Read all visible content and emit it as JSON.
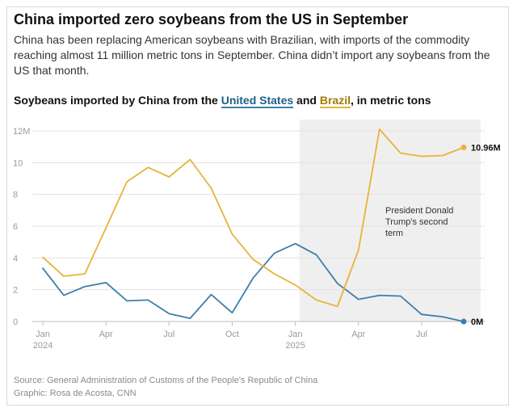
{
  "header": {
    "title": "China imported zero soybeans from the US in September",
    "subtitle": "China has been replacing American soybeans with Brazilian, with imports of the commodity reaching almost 11 million metric tons in September. China didn’t import any soybeans from the US that month."
  },
  "chart_heading": {
    "prefix": "Soybeans imported by China from the ",
    "us": "United States",
    "and": " and ",
    "brazil": "Brazil",
    "suffix": ", in metric tons"
  },
  "colors": {
    "us": "#3d7fab",
    "brazil": "#e7b33a",
    "shade": "#efefef",
    "grid": "#e3e3e3",
    "axis_text": "#9a9a9a"
  },
  "chart_data": {
    "type": "line",
    "title": "Soybeans imported by China from the United States and Brazil, in metric tons",
    "xlabel": "",
    "ylabel": "",
    "unit": "million metric tons",
    "x": [
      "Jan 2024",
      "Feb 2024",
      "Mar 2024",
      "Apr 2024",
      "May 2024",
      "Jun 2024",
      "Jul 2024",
      "Aug 2024",
      "Sep 2024",
      "Oct 2024",
      "Nov 2024",
      "Dec 2024",
      "Jan 2025",
      "Feb 2025",
      "Mar 2025",
      "Apr 2025",
      "May 2025",
      "Jun 2025",
      "Jul 2025",
      "Aug 2025",
      "Sep 2025"
    ],
    "series": [
      {
        "name": "United States",
        "color": "#3d7fab",
        "values": [
          3.35,
          1.65,
          2.2,
          2.45,
          1.3,
          1.35,
          0.5,
          0.2,
          1.7,
          0.55,
          2.75,
          4.3,
          4.9,
          4.2,
          2.4,
          1.4,
          1.65,
          1.6,
          0.45,
          0.3,
          0.0
        ]
      },
      {
        "name": "Brazil",
        "color": "#e7b33a",
        "values": [
          4.05,
          2.85,
          3.0,
          5.9,
          8.8,
          9.7,
          9.1,
          10.2,
          8.4,
          5.5,
          3.9,
          3.0,
          2.3,
          1.35,
          0.95,
          4.5,
          12.1,
          10.6,
          10.4,
          10.45,
          10.96
        ]
      }
    ],
    "y_ticks": [
      {
        "value": 0,
        "label": "0"
      },
      {
        "value": 2,
        "label": "2"
      },
      {
        "value": 4,
        "label": "4"
      },
      {
        "value": 6,
        "label": "6"
      },
      {
        "value": 8,
        "label": "8"
      },
      {
        "value": 10,
        "label": "10"
      },
      {
        "value": 12,
        "label": "12M"
      }
    ],
    "x_ticks": [
      {
        "index": 0,
        "label": "Jan",
        "sublabel": "2024"
      },
      {
        "index": 3,
        "label": "Apr",
        "sublabel": ""
      },
      {
        "index": 6,
        "label": "Jul",
        "sublabel": ""
      },
      {
        "index": 9,
        "label": "Oct",
        "sublabel": ""
      },
      {
        "index": 12,
        "label": "Jan",
        "sublabel": "2025"
      },
      {
        "index": 15,
        "label": "Apr",
        "sublabel": ""
      },
      {
        "index": 18,
        "label": "Jul",
        "sublabel": ""
      }
    ],
    "ylim": [
      0,
      12
    ],
    "grid": true,
    "shaded_period": {
      "start_index": 12.2,
      "end_index": 20.8,
      "label": "President Donald Trump's second term"
    },
    "end_labels": [
      {
        "series": "Brazil",
        "label": "10.96M"
      },
      {
        "series": "United States",
        "label": "0M"
      }
    ]
  },
  "footer": {
    "source": "Source: General Administration of Customs of the People's Republic of China",
    "graphic": "Graphic: Rosa de Acosta, CNN"
  }
}
